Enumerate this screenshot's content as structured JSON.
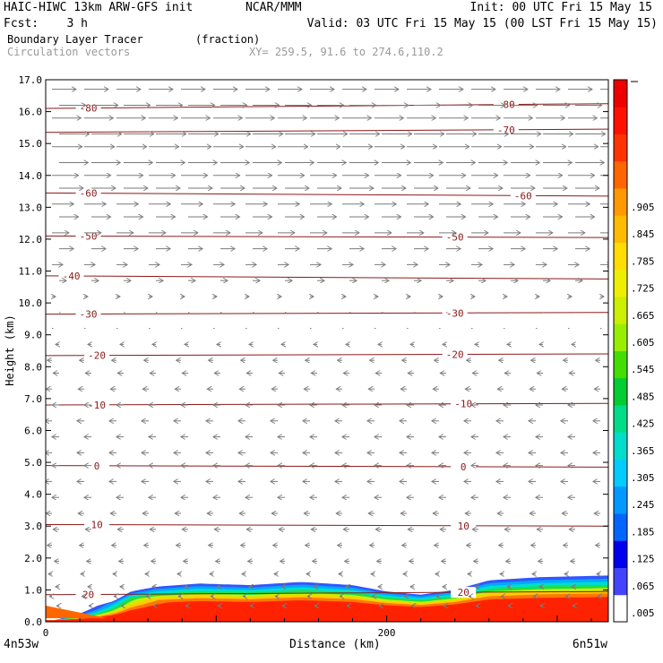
{
  "header": {
    "model": "HAIC-HIWC 13km ARW-GFS init",
    "org": "NCAR/MMM",
    "init": "Init: 00 UTC Fri 15 May 15",
    "fcst": "Fcst:    3 h",
    "valid": "Valid: 03 UTC Fri 15 May 15 (00 LST Fri 15 May 15)",
    "field": "Boundary Layer Tracer",
    "units": "(fraction)",
    "vectors": "Circulation vectors",
    "xy": "XY= 259.5, 91.6 to 274.6,110.2"
  },
  "footer": {
    "left": "4n53w",
    "right": "6n51w"
  },
  "chart_data": {
    "type": "heatmap",
    "xlabel": "Distance (km)",
    "ylabel": "Height (km)",
    "xlim": [
      0,
      330
    ],
    "ylim": [
      0,
      17
    ],
    "xticks": [
      0,
      200
    ],
    "yticks": [
      "0.0",
      "1.0",
      "2.0",
      "3.0",
      "4.0",
      "5.0",
      "6.0",
      "7.0",
      "8.0",
      "9.0",
      "10.0",
      "11.0",
      "12.0",
      "13.0",
      "14.0",
      "15.0",
      "16.0",
      "17.0"
    ],
    "colorbar": {
      "labels": [
        ".005",
        ".065",
        ".125",
        ".185",
        ".245",
        ".305",
        ".365",
        ".425",
        ".485",
        ".545",
        ".605",
        ".665",
        ".725",
        ".785",
        ".845",
        ".905"
      ],
      "colors": [
        "#ffffff",
        "#4444ff",
        "#0000ee",
        "#0066ff",
        "#0099ff",
        "#00ccff",
        "#00ddcc",
        "#00dd88",
        "#00cc33",
        "#44dd00",
        "#99ee00",
        "#ccee00",
        "#eeee00",
        "#ffdd00",
        "#ffbb00",
        "#ff9900",
        "#ff6600",
        "#ff3300",
        "#ff1100",
        "#ee0000"
      ]
    },
    "boundary_layer_top_km": {
      "x": [
        0,
        20,
        30,
        40,
        50,
        65,
        90,
        120,
        150,
        180,
        200,
        210,
        220,
        240,
        260,
        290,
        330
      ],
      "y": [
        0.3,
        0.35,
        0.45,
        0.6,
        0.9,
        1.05,
        1.15,
        1.1,
        1.2,
        1.1,
        0.9,
        0.85,
        0.8,
        0.95,
        1.25,
        1.35,
        1.4
      ]
    },
    "contours": [
      {
        "level": "-80",
        "y": [
          16.1,
          16.25
        ],
        "label_x": [
          25,
          270
        ]
      },
      {
        "level": "-70",
        "y": [
          15.35,
          15.45
        ],
        "label_x": [
          270
        ]
      },
      {
        "level": "-60",
        "y": [
          13.45,
          13.35
        ],
        "label_x": [
          25,
          280
        ]
      },
      {
        "level": "-50",
        "y": [
          12.1,
          12.05
        ],
        "label_x": [
          25,
          240
        ]
      },
      {
        "level": "-40",
        "y": [
          10.85,
          10.75
        ],
        "label_x": [
          15
        ]
      },
      {
        "level": "-30",
        "y": [
          9.65,
          9.7
        ],
        "label_x": [
          25,
          240
        ]
      },
      {
        "level": "-20",
        "y": [
          8.35,
          8.4
        ],
        "label_x": [
          30,
          240
        ]
      },
      {
        "level": "-10",
        "y": [
          6.8,
          6.85
        ],
        "label_x": [
          30,
          245
        ]
      },
      {
        "level": "0",
        "y": [
          4.9,
          4.85
        ],
        "label_x": [
          30,
          245
        ]
      },
      {
        "level": "10",
        "y": [
          3.05,
          3.0
        ],
        "label_x": [
          30,
          245
        ]
      },
      {
        "level": "20",
        "y": [
          0.85,
          0.95
        ],
        "label_x": [
          25,
          245
        ]
      }
    ],
    "vectors": {
      "levels_km": [
        16.7,
        16.2,
        15.8,
        15.3,
        14.9,
        14.4,
        14.0,
        13.6,
        13.1,
        12.7,
        12.2,
        11.7,
        11.2,
        10.7,
        10.2,
        9.7,
        9.2,
        8.7,
        8.2,
        7.8,
        7.3,
        6.8,
        6.3,
        5.8,
        5.3,
        4.9,
        4.4,
        3.9,
        3.4,
        2.9,
        2.4,
        1.9,
        1.5,
        1.1,
        0.8,
        0.5
      ],
      "u_m_s": [
        20,
        22,
        24,
        25,
        25,
        24,
        22,
        20,
        18,
        16,
        14,
        12,
        9,
        6,
        3,
        1,
        -1,
        -3,
        -4,
        -5,
        -5,
        -6,
        -6,
        -6,
        -6,
        -6,
        -6,
        -6,
        -5,
        -5,
        -4,
        -4,
        -3,
        -3,
        -2,
        -2
      ]
    }
  }
}
